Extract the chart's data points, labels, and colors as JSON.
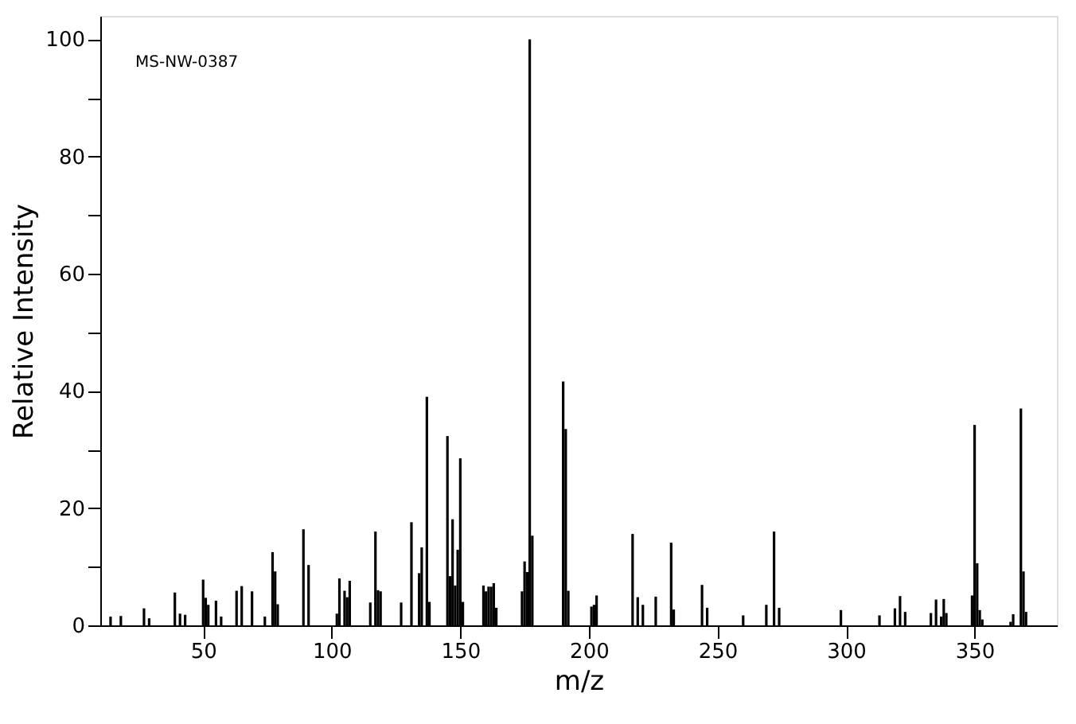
{
  "chart_data": {
    "type": "bar",
    "xlabel": "m/z",
    "ylabel": "Relative Intensity",
    "annotations": [
      "MS-NW-0387"
    ],
    "x": [
      14,
      18,
      27,
      29,
      39,
      41,
      43,
      50,
      51,
      52,
      55,
      57,
      63,
      65,
      69,
      74,
      77,
      78,
      79,
      89,
      91,
      102,
      103,
      105,
      106,
      107,
      115,
      117,
      118,
      119,
      127,
      131,
      134,
      135,
      137,
      138,
      145,
      146,
      147,
      148,
      149,
      150,
      151,
      159,
      160,
      161,
      162,
      163,
      164,
      174,
      175,
      176,
      177,
      178,
      190,
      191,
      192,
      201,
      202,
      203,
      217,
      219,
      221,
      226,
      232,
      233,
      244,
      246,
      260,
      269,
      272,
      274,
      298,
      313,
      319,
      321,
      323,
      333,
      335,
      337,
      338,
      339,
      349,
      350,
      351,
      352,
      353,
      364,
      365,
      368,
      369,
      370
    ],
    "series": [
      {
        "color": "#000000",
        "values": [
          1.5,
          1.6,
          2.9,
          1.2,
          5.6,
          2.0,
          1.8,
          7.8,
          4.7,
          3.5,
          4.2,
          1.5,
          5.9,
          6.7,
          5.8,
          1.5,
          12.5,
          9.2,
          3.6,
          16.4,
          10.3,
          2.0,
          8.0,
          5.9,
          4.8,
          7.6,
          3.9,
          16.0,
          6.0,
          5.8,
          3.9,
          17.6,
          8.9,
          13.3,
          39.0,
          4.0,
          32.3,
          8.4,
          18.1,
          6.8,
          12.9,
          28.5,
          4.0,
          6.8,
          5.8,
          6.6,
          6.6,
          7.2,
          3.0,
          5.8,
          10.9,
          9.1,
          100,
          15.3,
          41.6,
          33.5,
          5.9,
          3.2,
          3.5,
          5.1,
          15.6,
          4.8,
          3.5,
          4.9,
          14.1,
          2.7,
          6.9,
          3.0,
          1.7,
          3.5,
          16.0,
          3.0,
          2.6,
          1.7,
          2.9,
          5.0,
          2.3,
          2.1,
          4.4,
          1.5,
          4.5,
          2.1,
          5.1,
          34.2,
          10.6,
          2.6,
          1.0,
          0.6,
          1.9,
          37.0,
          9.2,
          2.3
        ]
      }
    ],
    "xlim": [
      10,
      382
    ],
    "ylim": [
      0,
      104
    ],
    "xticks": [
      50,
      100,
      150,
      200,
      250,
      300,
      350
    ],
    "yticks": [
      0,
      {
        "value": 10,
        "label": null
      },
      20,
      {
        "value": 30,
        "label": null
      },
      40,
      {
        "value": 50,
        "label": null
      },
      60,
      {
        "value": 70,
        "label": null
      },
      80,
      {
        "value": 90,
        "label": null
      },
      100
    ],
    "grid": false
  }
}
